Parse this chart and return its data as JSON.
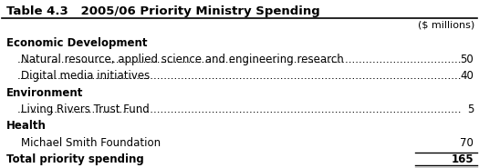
{
  "title": "Table 4.3   2005/06 Priority Ministry Spending",
  "header_unit": "($ millions)",
  "rows": [
    {
      "label": "Economic Development",
      "value": null,
      "indent": 0,
      "bold": true,
      "category_header": true
    },
    {
      "label": "Natural resource, applied science and engineering research",
      "value": 50,
      "indent": 1,
      "bold": false,
      "category_header": false
    },
    {
      "label": "Digital media initiatives",
      "value": 40,
      "indent": 1,
      "bold": false,
      "category_header": false
    },
    {
      "label": "Environment",
      "value": null,
      "indent": 0,
      "bold": true,
      "category_header": true
    },
    {
      "label": "Living Rivers Trust Fund",
      "value": 5,
      "indent": 1,
      "bold": false,
      "category_header": false
    },
    {
      "label": "Health",
      "value": null,
      "indent": 0,
      "bold": true,
      "category_header": true
    },
    {
      "label": "Michael Smith Foundation",
      "value": 70,
      "indent": 1,
      "bold": false,
      "category_header": false
    },
    {
      "label": "Total priority spending",
      "value": 165,
      "indent": 0,
      "bold": true,
      "category_header": false,
      "total_row": true
    }
  ],
  "bg_color": "#ffffff",
  "text_color": "#000000",
  "title_fontsize": 9.5,
  "body_fontsize": 8.5,
  "figure_width": 5.25,
  "figure_height": 1.85
}
